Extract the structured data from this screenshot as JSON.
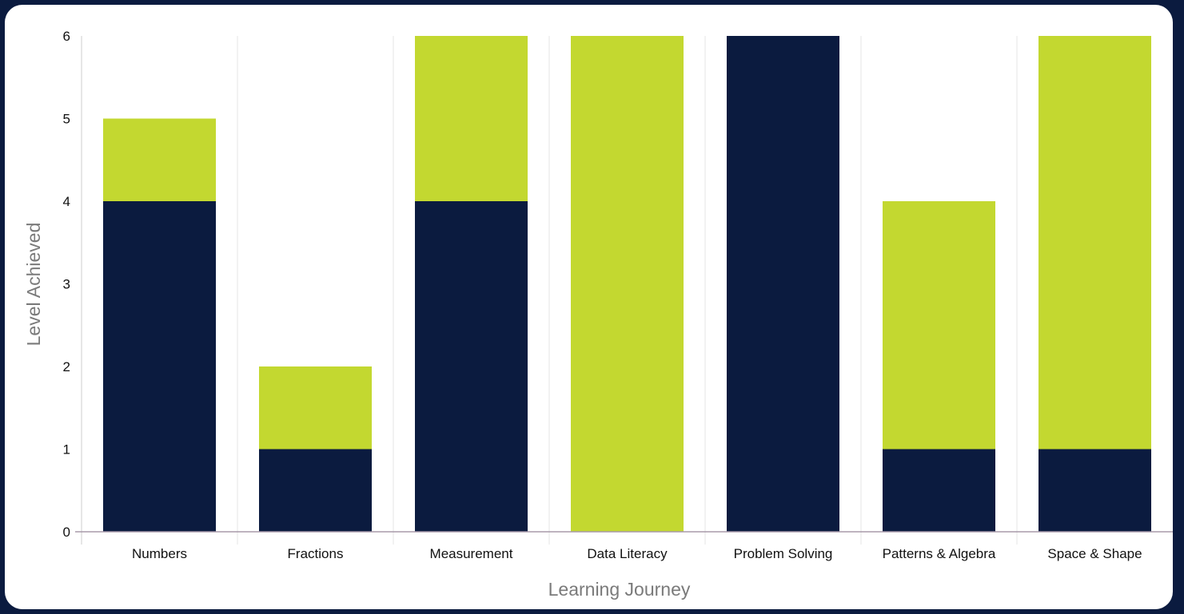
{
  "chart_data": {
    "type": "bar",
    "stacked": true,
    "xlabel": "Learning Journey",
    "ylabel": "Level Achieved",
    "ylim": [
      0,
      6
    ],
    "yticks": [
      0,
      1,
      2,
      3,
      4,
      5,
      6
    ],
    "grid": false,
    "categories": [
      "Numbers",
      "Fractions",
      "Measurement",
      "Data Literacy",
      "Problem Solving",
      "Patterns & Algebra",
      "Space & Shape"
    ],
    "series": [
      {
        "color": "#0b1b3f",
        "values": [
          4,
          1,
          4,
          0,
          6,
          1,
          1
        ]
      },
      {
        "color": "#c3d830",
        "values": [
          1,
          1,
          2,
          6,
          0,
          3,
          5
        ]
      }
    ]
  }
}
